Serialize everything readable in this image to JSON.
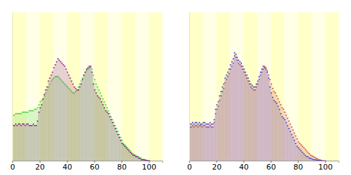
{
  "chart_data": [
    {
      "type": "bar",
      "tick_labels": "x",
      "xlim": [
        0,
        110
      ],
      "xticks": [
        0,
        20,
        40,
        60,
        80,
        100
      ],
      "ylim": [
        0,
        100
      ],
      "x": [
        0,
        1,
        2,
        3,
        4,
        5,
        6,
        7,
        8,
        9,
        10,
        11,
        12,
        13,
        14,
        15,
        16,
        17,
        18,
        19,
        20,
        21,
        22,
        23,
        24,
        25,
        26,
        27,
        28,
        29,
        30,
        31,
        32,
        33,
        34,
        35,
        36,
        37,
        38,
        39,
        40,
        41,
        42,
        43,
        44,
        45,
        46,
        47,
        48,
        49,
        50,
        51,
        52,
        53,
        54,
        55,
        56,
        57,
        58,
        59,
        60,
        61,
        62,
        63,
        64,
        65,
        66,
        67,
        68,
        69,
        70,
        71,
        72,
        73,
        74,
        75,
        76,
        77,
        78,
        79,
        80,
        81,
        82,
        83,
        84,
        85,
        86,
        87,
        88,
        89,
        90,
        91,
        92,
        93,
        94,
        95,
        96,
        97,
        98,
        99,
        100
      ],
      "series": [
        {
          "color": "#33cc33",
          "values": [
            31,
            31,
            32,
            32,
            32,
            32,
            32,
            33,
            33,
            33,
            33,
            33,
            34,
            34,
            34,
            34,
            35,
            35,
            36,
            38,
            40,
            41,
            42,
            44,
            46,
            48,
            50,
            52,
            54,
            55,
            56,
            57,
            57,
            57,
            56,
            55,
            54,
            53,
            52,
            51,
            50,
            49,
            48,
            47,
            46,
            46,
            47,
            48,
            50,
            52,
            54,
            56,
            58,
            60,
            61,
            62,
            63,
            63,
            62,
            58,
            55,
            52,
            50,
            48,
            46,
            44,
            42,
            40,
            38,
            36,
            34,
            32,
            30,
            28,
            26,
            24,
            22,
            20,
            18,
            16,
            14,
            12,
            11,
            10,
            9,
            8,
            7,
            6,
            5,
            4,
            4,
            3,
            3,
            2,
            2,
            1,
            1,
            1,
            0.5,
            0.3,
            0.2
          ]
        },
        {
          "color": "#800080",
          "values": [
            24,
            24,
            25,
            24,
            25,
            25,
            24,
            25,
            25,
            24,
            25,
            25,
            24,
            24,
            24,
            25,
            24,
            24,
            27,
            33,
            36,
            38,
            42,
            45,
            48,
            50,
            54,
            56,
            58,
            60,
            63,
            65,
            67,
            69,
            68,
            67,
            66,
            65,
            64,
            62,
            60,
            58,
            56,
            54,
            52,
            50,
            49,
            48,
            48,
            50,
            52,
            55,
            58,
            60,
            62,
            63,
            64,
            64,
            60,
            52,
            48,
            46,
            44,
            43,
            42,
            40,
            38,
            36,
            34,
            33,
            32,
            30,
            28,
            26,
            24,
            22,
            20,
            18,
            16,
            14,
            12,
            11,
            10,
            9,
            8,
            7,
            6,
            5,
            4,
            4,
            3,
            3,
            2,
            2,
            1,
            1,
            1,
            0.5,
            0.5,
            0.3,
            0.2
          ]
        }
      ]
    },
    {
      "type": "bar",
      "tick_labels": "x",
      "xlim": [
        0,
        110
      ],
      "xticks": [
        0,
        20,
        40,
        60,
        80,
        100
      ],
      "ylim": [
        0,
        100
      ],
      "x": [
        0,
        1,
        2,
        3,
        4,
        5,
        6,
        7,
        8,
        9,
        10,
        11,
        12,
        13,
        14,
        15,
        16,
        17,
        18,
        19,
        20,
        21,
        22,
        23,
        24,
        25,
        26,
        27,
        28,
        29,
        30,
        31,
        32,
        33,
        34,
        35,
        36,
        37,
        38,
        39,
        40,
        41,
        42,
        43,
        44,
        45,
        46,
        47,
        48,
        49,
        50,
        51,
        52,
        53,
        54,
        55,
        56,
        57,
        58,
        59,
        60,
        61,
        62,
        63,
        64,
        65,
        66,
        67,
        68,
        69,
        70,
        71,
        72,
        73,
        74,
        75,
        76,
        77,
        78,
        79,
        80,
        81,
        82,
        83,
        84,
        85,
        86,
        87,
        88,
        89,
        90,
        91,
        92,
        93,
        94,
        95,
        96,
        97,
        98,
        99,
        100
      ],
      "series": [
        {
          "color": "#cc3333",
          "values": [
            23,
            23,
            24,
            23,
            24,
            24,
            23,
            24,
            24,
            23,
            24,
            24,
            23,
            23,
            23,
            24,
            23,
            23,
            26,
            32,
            35,
            37,
            41,
            44,
            47,
            49,
            53,
            55,
            57,
            59,
            62,
            64,
            66,
            71,
            70,
            68,
            66,
            65,
            64,
            62,
            60,
            58,
            56,
            54,
            52,
            50,
            49,
            48,
            48,
            50,
            52,
            55,
            58,
            60,
            62,
            64,
            63,
            61,
            58,
            55,
            52,
            49,
            47,
            46,
            44,
            42,
            40,
            38,
            36,
            35,
            33,
            31,
            29,
            27,
            25,
            23,
            21,
            19,
            17,
            15,
            13,
            12,
            11,
            10,
            9,
            8,
            7,
            6,
            5,
            4,
            3.5,
            3,
            2.5,
            2,
            1.5,
            1,
            0.8,
            0.5,
            0.3,
            0.2,
            0.1
          ]
        },
        {
          "color": "#3333cc",
          "values": [
            25,
            25,
            26,
            25,
            26,
            26,
            25,
            26,
            25,
            25,
            26,
            26,
            25,
            25,
            25,
            26,
            25,
            25,
            28,
            35,
            38,
            40,
            44,
            47,
            50,
            52,
            56,
            58,
            60,
            62,
            65,
            67,
            69,
            73,
            72,
            70,
            68,
            67,
            66,
            64,
            62,
            60,
            58,
            56,
            54,
            52,
            51,
            50,
            50,
            52,
            54,
            57,
            60,
            62,
            64,
            63,
            62,
            60,
            56,
            50,
            46,
            43,
            41,
            40,
            39,
            37,
            35,
            32,
            30,
            29,
            28,
            26,
            24,
            22,
            20,
            18,
            16,
            14,
            12,
            10,
            9,
            8,
            7,
            6,
            5,
            4,
            3,
            3,
            2,
            2,
            1.5,
            1,
            1,
            0.8,
            0.6,
            0.4,
            0.3,
            0.2,
            0.1,
            0.1,
            0.1
          ]
        }
      ]
    }
  ]
}
